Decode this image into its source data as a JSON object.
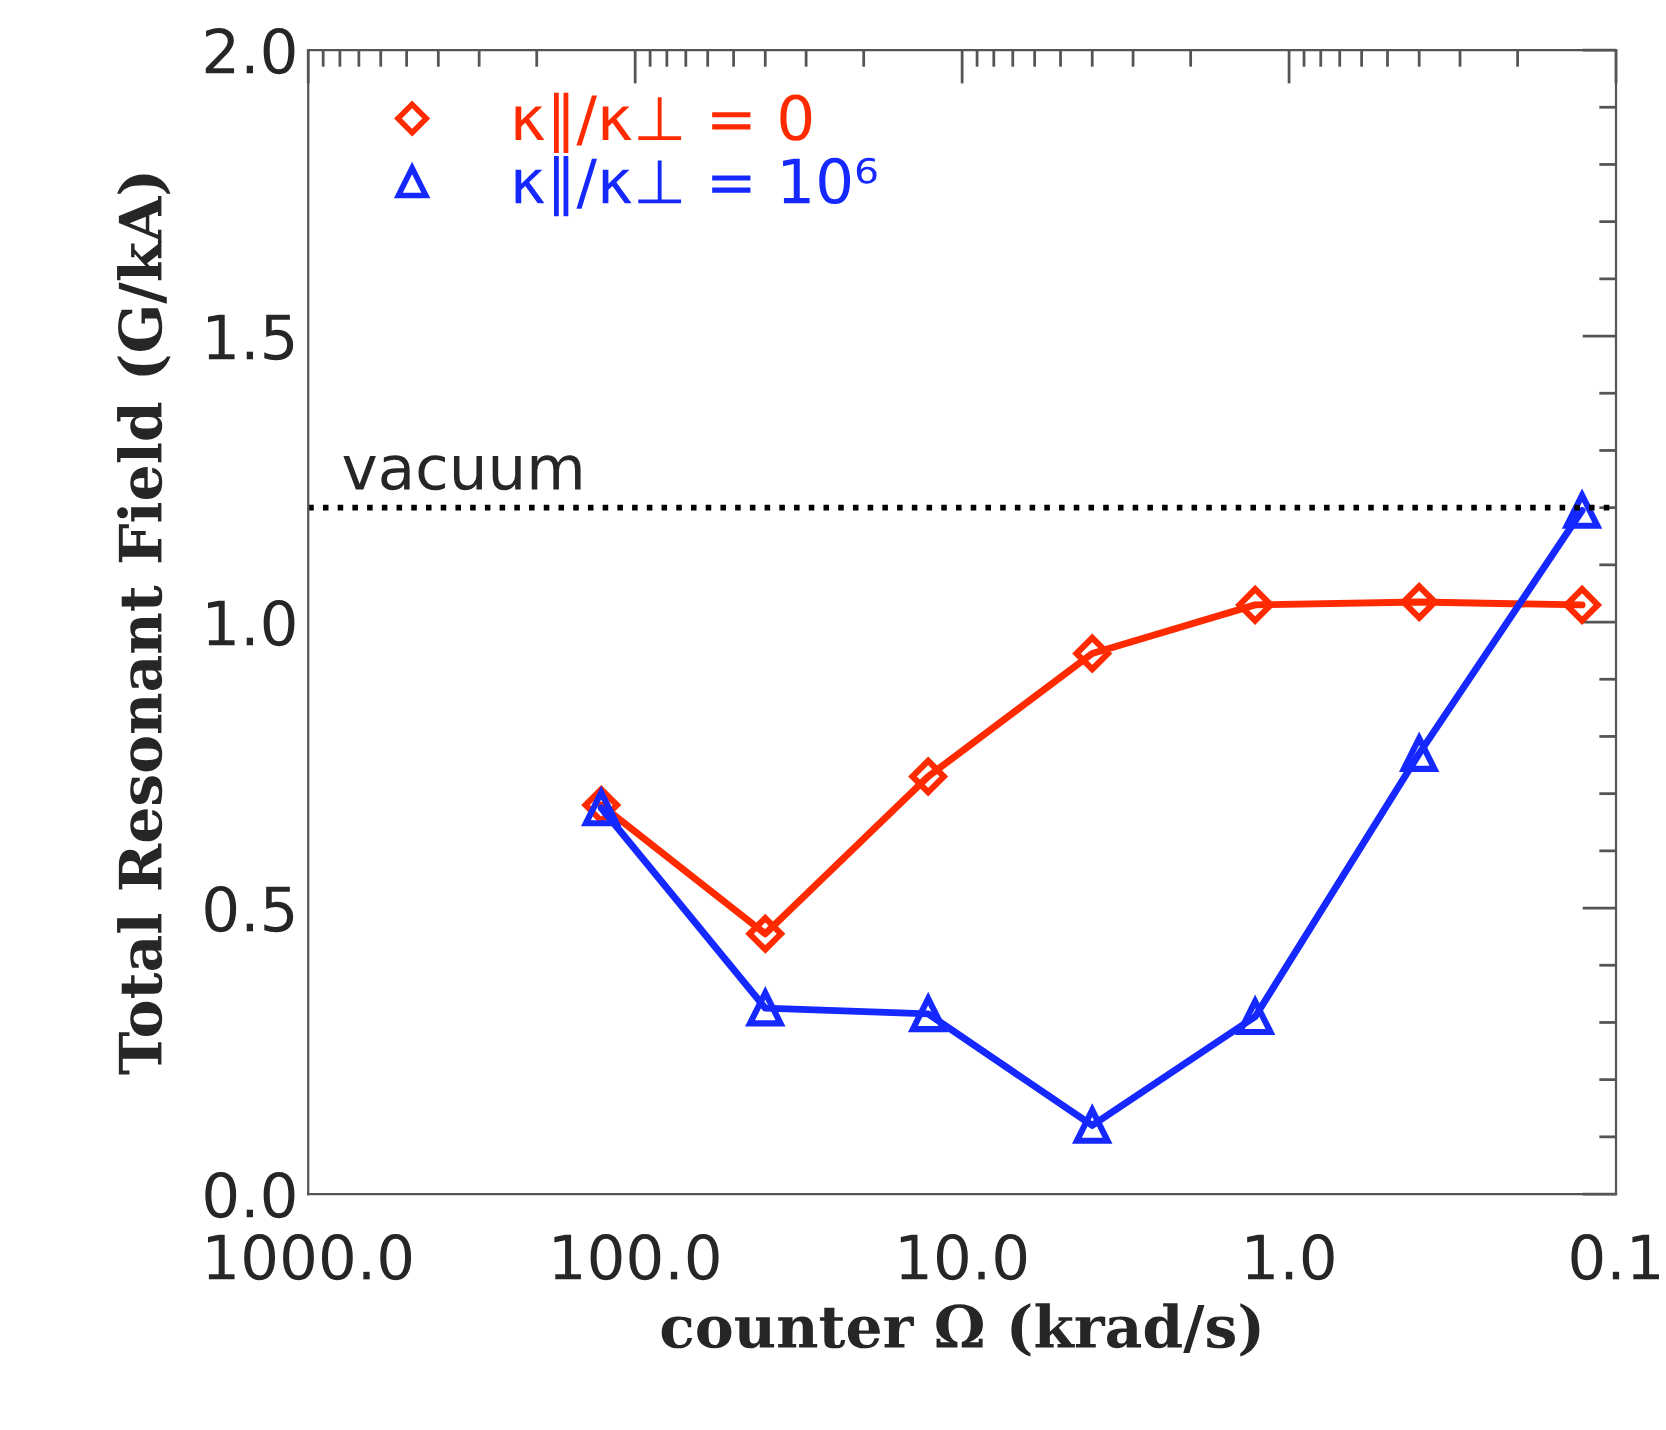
{
  "chart_data": {
    "type": "line",
    "xlabel": "counter Ω (krad/s)",
    "ylabel": "Total Resonant Field (G/kA)",
    "x": [
      127,
      40,
      12.7,
      4.0,
      1.27,
      0.4,
      0.127
    ],
    "series": [
      {
        "name": "κ∥/κ⊥ = 0",
        "color": "#ff2a00",
        "marker": "diamond",
        "values": [
          0.68,
          0.455,
          0.73,
          0.945,
          1.03,
          1.035,
          1.03
        ]
      },
      {
        "name": "κ∥/κ⊥ = 10⁶",
        "color": "#1428ff",
        "marker": "triangle",
        "values": [
          0.675,
          0.325,
          0.315,
          0.12,
          0.31,
          0.77,
          1.195
        ]
      }
    ],
    "log": "x",
    "xlim": [
      1000,
      0.1
    ],
    "xticks": [
      {
        "value": 1000,
        "label": "1000.0"
      },
      {
        "value": 100,
        "label": "100.0"
      },
      {
        "value": 10,
        "label": "10.0"
      },
      {
        "value": 1,
        "label": "1.0"
      },
      0.1
    ],
    "ylim": [
      0,
      2
    ],
    "yticks": [
      {
        "value": 0,
        "label": "0.0"
      },
      {
        "value": 0.5,
        "label": "0.5"
      },
      {
        "value": 1,
        "label": "1.0"
      },
      {
        "value": 1.5,
        "label": "1.5"
      },
      {
        "value": 2,
        "label": "2.0"
      }
    ],
    "ref_lines": [
      {
        "axis": "y",
        "value": 1.2,
        "label": "vacuum",
        "color": "#000000",
        "line_style": "dotted"
      }
    ],
    "legend": "top left",
    "grid": false,
    "line_style": "solid"
  }
}
